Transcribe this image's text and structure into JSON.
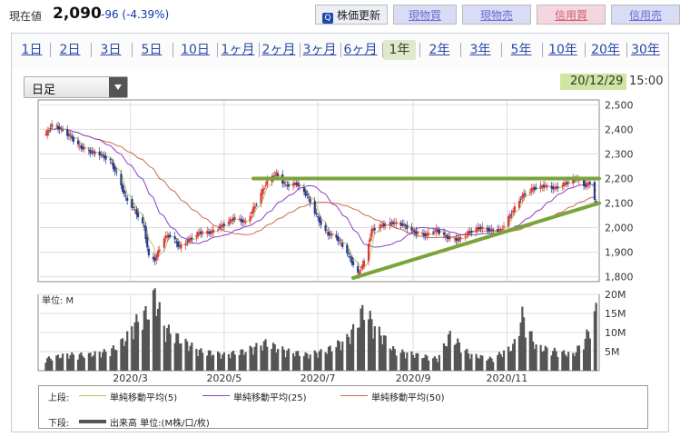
{
  "header": {
    "price_label": "現在値",
    "price_value": "2,090",
    "price_change": "-96 (-4.39%)",
    "update_button": "株価更新",
    "buttons": [
      "現物買",
      "現物売",
      "信用買",
      "信用売"
    ]
  },
  "periods": {
    "items": [
      "1日",
      "2日",
      "3日",
      "5日",
      "10日",
      "1ヶ月",
      "2ヶ月",
      "3ヶ月",
      "6ヶ月",
      "1年",
      "2年",
      "3年",
      "5年",
      "10年",
      "20年",
      "30年"
    ],
    "active": "1年"
  },
  "controls": {
    "interval_select": "日足"
  },
  "timestamp": {
    "date": "20/12/29",
    "time": "15:00"
  },
  "legend": {
    "upper_label": "上段:",
    "lower_label": "下段:",
    "ma5": "単純移動平均(5)",
    "ma25": "単純移動平均(25)",
    "ma50": "単純移動平均(50)",
    "volume": "出来高 単位:(M株/口/枚)"
  },
  "colors": {
    "ma5": "#b8c860",
    "ma25": "#8a3fc8",
    "ma50": "#d06a4a",
    "candle_up": "#d83c3c",
    "candle_down": "#2a3a8a",
    "trendline": "#7aa33a",
    "volume": "#555555"
  },
  "chart_data": [
    {
      "type": "candlestick",
      "title": "",
      "xlabel": "",
      "ylabel": "",
      "x_ticks": [
        "2020/3",
        "2020/5",
        "2020/7",
        "2020/9",
        "2020/11"
      ],
      "y_ticks": [
        "2,500",
        "2,400",
        "2,300",
        "2,200",
        "2,100",
        "2,000",
        "1,900",
        "1,800"
      ],
      "ylim": [
        1780,
        2520
      ],
      "grid": true,
      "close_points": [
        [
          "2020-01-06",
          2380
        ],
        [
          "2020-01-10",
          2420
        ],
        [
          "2020-01-16",
          2400
        ],
        [
          "2020-01-22",
          2370
        ],
        [
          "2020-01-28",
          2330
        ],
        [
          "2020-02-03",
          2310
        ],
        [
          "2020-02-10",
          2300
        ],
        [
          "2020-02-17",
          2270
        ],
        [
          "2020-02-21",
          2220
        ],
        [
          "2020-02-27",
          2120
        ],
        [
          "2020-03-04",
          2070
        ],
        [
          "2020-03-10",
          2000
        ],
        [
          "2020-03-13",
          1880
        ],
        [
          "2020-03-17",
          1870
        ],
        [
          "2020-03-23",
          1960
        ],
        [
          "2020-03-27",
          1970
        ],
        [
          "2020-04-02",
          1920
        ],
        [
          "2020-04-08",
          1950
        ],
        [
          "2020-04-15",
          1980
        ],
        [
          "2020-04-22",
          1980
        ],
        [
          "2020-04-30",
          2010
        ],
        [
          "2020-05-08",
          2040
        ],
        [
          "2020-05-15",
          2020
        ],
        [
          "2020-05-22",
          2100
        ],
        [
          "2020-05-29",
          2190
        ],
        [
          "2020-06-04",
          2220
        ],
        [
          "2020-06-10",
          2170
        ],
        [
          "2020-06-17",
          2180
        ],
        [
          "2020-06-24",
          2130
        ],
        [
          "2020-06-30",
          2050
        ],
        [
          "2020-07-06",
          1980
        ],
        [
          "2020-07-13",
          1960
        ],
        [
          "2020-07-20",
          1900
        ],
        [
          "2020-07-27",
          1810
        ],
        [
          "2020-07-31",
          1860
        ],
        [
          "2020-08-05",
          1990
        ],
        [
          "2020-08-12",
          2010
        ],
        [
          "2020-08-19",
          2020
        ],
        [
          "2020-08-26",
          2010
        ],
        [
          "2020-09-02",
          1980
        ],
        [
          "2020-09-09",
          1970
        ],
        [
          "2020-09-16",
          1990
        ],
        [
          "2020-09-23",
          1960
        ],
        [
          "2020-09-30",
          1950
        ],
        [
          "2020-10-07",
          1980
        ],
        [
          "2020-10-14",
          2000
        ],
        [
          "2020-10-21",
          1990
        ],
        [
          "2020-10-28",
          1990
        ],
        [
          "2020-11-04",
          2060
        ],
        [
          "2020-11-11",
          2130
        ],
        [
          "2020-11-18",
          2160
        ],
        [
          "2020-11-25",
          2170
        ],
        [
          "2020-12-02",
          2160
        ],
        [
          "2020-12-09",
          2180
        ],
        [
          "2020-12-16",
          2200
        ],
        [
          "2020-12-22",
          2170
        ],
        [
          "2020-12-25",
          2186
        ],
        [
          "2020-12-29",
          2090
        ]
      ],
      "series": [
        {
          "name": "単純移動平均(5)",
          "type": "line"
        },
        {
          "name": "単純移動平均(25)",
          "type": "line"
        },
        {
          "name": "単純移動平均(50)",
          "type": "line"
        }
      ],
      "annotations": [
        {
          "type": "horizontal-trendline",
          "y": 2200,
          "from": "2020-05-20",
          "to": "2020-12-31"
        },
        {
          "type": "rising-trendline",
          "from": [
            "2020-07-24",
            1795
          ],
          "to": [
            "2020-12-31",
            2100
          ]
        }
      ]
    },
    {
      "type": "bar",
      "title": "",
      "ylabel": "単位: M",
      "y_ticks": [
        "20M",
        "15M",
        "10M",
        "5M"
      ],
      "ylim": [
        0,
        20
      ],
      "volume_points": [
        [
          "2020-01-06",
          3
        ],
        [
          "2020-01-20",
          4
        ],
        [
          "2020-02-03",
          4
        ],
        [
          "2020-02-17",
          5
        ],
        [
          "2020-02-27",
          8
        ],
        [
          "2020-03-04",
          12
        ],
        [
          "2020-03-13",
          15
        ],
        [
          "2020-03-17",
          19
        ],
        [
          "2020-03-23",
          11
        ],
        [
          "2020-04-02",
          8
        ],
        [
          "2020-04-15",
          5
        ],
        [
          "2020-05-01",
          4
        ],
        [
          "2020-05-15",
          5
        ],
        [
          "2020-05-28",
          7
        ],
        [
          "2020-06-10",
          5
        ],
        [
          "2020-06-24",
          4
        ],
        [
          "2020-07-06",
          5
        ],
        [
          "2020-07-20",
          8
        ],
        [
          "2020-07-27",
          12
        ],
        [
          "2020-07-31",
          16
        ],
        [
          "2020-08-07",
          11
        ],
        [
          "2020-08-20",
          5
        ],
        [
          "2020-09-03",
          4
        ],
        [
          "2020-09-17",
          3
        ],
        [
          "2020-09-25",
          9
        ],
        [
          "2020-10-08",
          4
        ],
        [
          "2020-10-22",
          3
        ],
        [
          "2020-11-05",
          6
        ],
        [
          "2020-11-11",
          14
        ],
        [
          "2020-11-20",
          6
        ],
        [
          "2020-12-02",
          5
        ],
        [
          "2020-12-14",
          4
        ],
        [
          "2020-12-22",
          8
        ],
        [
          "2020-12-29",
          15
        ]
      ]
    }
  ]
}
